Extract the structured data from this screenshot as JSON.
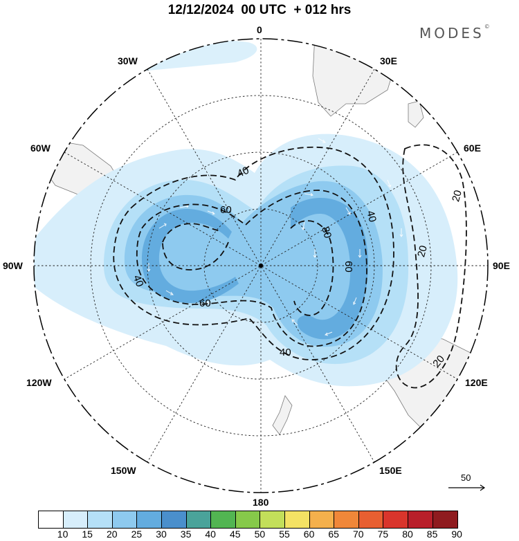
{
  "title": "12/12/2024  00 UTC  + 012 hrs",
  "brand": {
    "text": "MODES",
    "mark": "©"
  },
  "longitude_labels": [
    "0",
    "30E",
    "60E",
    "90E",
    "120E",
    "150E",
    "180",
    "150W",
    "120W",
    "90W",
    "60W",
    "30W"
  ],
  "contour_labels": [
    "40",
    "60",
    "40",
    "60",
    "40",
    "60",
    "80",
    "40",
    "20",
    "20",
    "20",
    "40"
  ],
  "colorbar": {
    "ticks": [
      "10",
      "15",
      "20",
      "25",
      "30",
      "35",
      "40",
      "45",
      "50",
      "55",
      "60",
      "65",
      "70",
      "75",
      "80",
      "85",
      "90"
    ],
    "colors": [
      "#ffffff",
      "#d7eefb",
      "#b5e0f7",
      "#8ecaef",
      "#63acdf",
      "#4a8fcc",
      "#4aa39a",
      "#52b552",
      "#86c94a",
      "#c3df5a",
      "#f4e264",
      "#f4b04c",
      "#f08739",
      "#e85f31",
      "#d9352c",
      "#b81f2a",
      "#8f1b1f"
    ]
  },
  "vector_reference": {
    "label": "50"
  },
  "colors": {
    "land": "#f2f2f2",
    "coast": "#7a7a7a",
    "jet_light": "#b5e0f7",
    "jet_mid": "#8ecaef",
    "jet_dark": "#63acdf"
  }
}
